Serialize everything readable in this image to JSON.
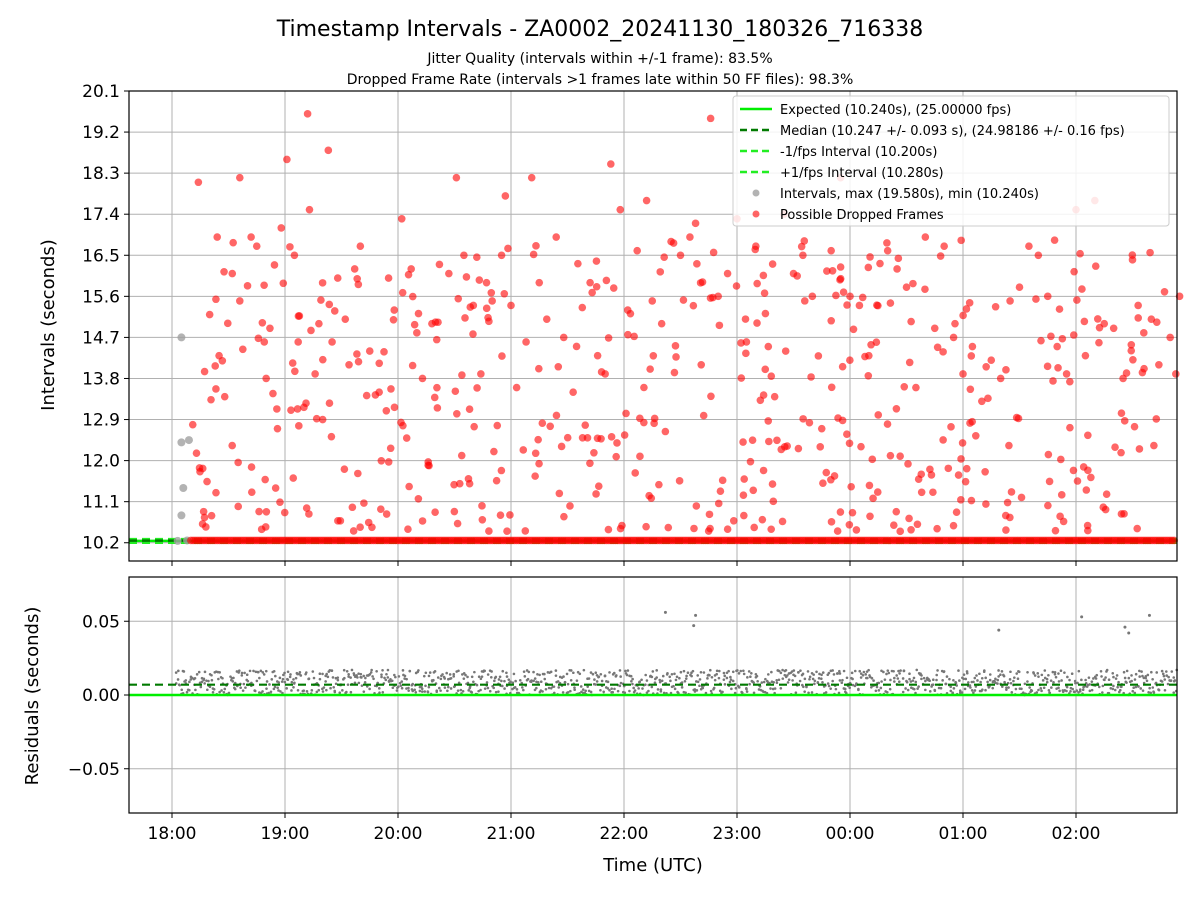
{
  "title": "Timestamp Intervals - ZA0002_20241130_180326_716338",
  "subtitle1": "Jitter Quality (intervals within +/-1 frame): 83.5%",
  "subtitle2": "Dropped Frame Rate (intervals >1 frames late within 50 FF files): 98.3%",
  "colors": {
    "expected": "#00ee00",
    "median": "#007a00",
    "interval_lines": "#22ee22",
    "intervals": "#a0a0a0",
    "dropped": "#ff0000",
    "residuals": "#777777",
    "grid": "#b0b0b0"
  },
  "chart_data": [
    {
      "type": "scatter",
      "xlabel": "Time (UTC)",
      "ylabel": "Intervals (seconds)",
      "ylim": [
        9.8,
        20.1
      ],
      "y_ticks": [
        "10.2",
        "11.1",
        "12.0",
        "12.9",
        "13.8",
        "14.7",
        "15.6",
        "16.5",
        "17.4",
        "18.3",
        "19.2",
        "20.1"
      ],
      "x_tick_labels": [
        "18:00",
        "19:00",
        "20:00",
        "21:00",
        "22:00",
        "23:00",
        "00:00",
        "01:00",
        "02:00"
      ],
      "grid": true,
      "legend_position": "top-right",
      "legend": [
        "Expected (10.240s), (25.00000 fps)",
        "Median (10.247 +/- 0.093 s), (24.98186 +/- 0.16 fps)",
        "-1/fps Interval (10.200s)",
        "+1/fps Interval (10.280s)",
        "Intervals, max (19.580s), min (10.240s)",
        "Possible Dropped Frames"
      ],
      "series": [
        {
          "name": "Expected (10.240s), (25.00000 fps)",
          "kind": "hline",
          "y": 10.24
        },
        {
          "name": "Median (10.247 +/- 0.093 s), (24.98186 +/- 0.16 fps)",
          "kind": "hline",
          "y": 10.247
        },
        {
          "name": "-1/fps Interval (10.200s)",
          "kind": "hline",
          "y": 10.2
        },
        {
          "name": "+1/fps Interval (10.280s)",
          "kind": "hline",
          "y": 10.28
        },
        {
          "name": "Intervals, max (19.580s), min (10.240s)",
          "kind": "scatter",
          "points": [
            [
              "18:05",
              14.7
            ],
            [
              "18:05",
              12.4
            ],
            [
              "18:06",
              11.4
            ],
            [
              "18:05",
              10.8
            ],
            [
              "18:09",
              12.45
            ],
            [
              "18:08",
              10.25
            ],
            [
              "18:03",
              10.24
            ]
          ]
        },
        {
          "name": "Possible Dropped Frames",
          "kind": "scatter",
          "baseline_y": 10.25,
          "baseline_from": "18:10",
          "points": [
            [
              "18:14",
              18.1
            ],
            [
              "18:20",
              15.2
            ],
            [
              "18:24",
              16.9
            ],
            [
              "18:25",
              14.3
            ],
            [
              "18:28",
              13.4
            ],
            [
              "18:32",
              16.1
            ],
            [
              "18:36",
              18.2
            ],
            [
              "18:36",
              15.5
            ],
            [
              "18:42",
              16.9
            ],
            [
              "18:45",
              16.7
            ],
            [
              "18:49",
              14.6
            ],
            [
              "18:50",
              13.8
            ],
            [
              "18:52",
              14.9
            ],
            [
              "18:56",
              12.7
            ],
            [
              "18:58",
              17.1
            ],
            [
              "19:01",
              18.6
            ],
            [
              "19:05",
              16.5
            ],
            [
              "19:07",
              14.6
            ],
            [
              "19:12",
              19.6
            ],
            [
              "19:13",
              17.5
            ],
            [
              "19:16",
              13.9
            ],
            [
              "19:18",
              15.0
            ],
            [
              "19:20",
              12.9
            ],
            [
              "19:23",
              18.8
            ],
            [
              "19:25",
              14.6
            ],
            [
              "19:28",
              16.0
            ],
            [
              "19:32",
              15.1
            ],
            [
              "19:34",
              14.1
            ],
            [
              "19:37",
              16.2
            ],
            [
              "19:40",
              16.7
            ],
            [
              "19:45",
              14.4
            ],
            [
              "19:50",
              13.5
            ],
            [
              "19:55",
              16.0
            ],
            [
              "19:58",
              15.3
            ],
            [
              "20:02",
              17.3
            ],
            [
              "20:07",
              16.2
            ],
            [
              "20:10",
              14.8
            ],
            [
              "20:13",
              13.8
            ],
            [
              "20:16",
              11.9
            ],
            [
              "20:18",
              15.0
            ],
            [
              "20:22",
              16.3
            ],
            [
              "20:27",
              16.1
            ],
            [
              "20:31",
              18.2
            ],
            [
              "20:35",
              16.5
            ],
            [
              "20:40",
              15.4
            ],
            [
              "20:44",
              13.9
            ],
            [
              "20:47",
              15.9
            ],
            [
              "20:50",
              15.5
            ],
            [
              "20:55",
              16.5
            ],
            [
              "20:57",
              17.8
            ],
            [
              "21:00",
              15.4
            ],
            [
              "21:03",
              13.6
            ],
            [
              "21:08",
              14.6
            ],
            [
              "21:11",
              18.2
            ],
            [
              "21:15",
              15.9
            ],
            [
              "21:19",
              15.1
            ],
            [
              "21:24",
              16.9
            ],
            [
              "21:28",
              14.7
            ],
            [
              "21:33",
              13.5
            ],
            [
              "21:38",
              12.5
            ],
            [
              "21:42",
              15.9
            ],
            [
              "21:46",
              14.3
            ],
            [
              "21:50",
              13.9
            ],
            [
              "21:53",
              18.5
            ],
            [
              "21:58",
              17.5
            ],
            [
              "22:02",
              15.3
            ],
            [
              "22:07",
              16.6
            ],
            [
              "22:12",
              17.7
            ],
            [
              "22:15",
              15.5
            ],
            [
              "22:20",
              15.0
            ],
            [
              "22:25",
              16.8
            ],
            [
              "22:30",
              16.5
            ],
            [
              "22:35",
              16.9
            ],
            [
              "22:38",
              17.2
            ],
            [
              "22:41",
              14.1
            ],
            [
              "22:46",
              19.5
            ],
            [
              "22:50",
              15.6
            ],
            [
              "22:55",
              16.1
            ],
            [
              "23:00",
              17.3
            ],
            [
              "23:05",
              14.6
            ],
            [
              "23:10",
              16.7
            ],
            [
              "23:15",
              14.0
            ],
            [
              "23:20",
              13.4
            ],
            [
              "23:25",
              17.4
            ],
            [
              "23:30",
              16.1
            ],
            [
              "23:35",
              16.5
            ],
            [
              "23:40",
              15.6
            ],
            [
              "23:45",
              12.7
            ],
            [
              "23:50",
              16.6
            ],
            [
              "23:55",
              18.2
            ],
            [
              "00:00",
              15.6
            ],
            [
              "00:05",
              15.4
            ],
            [
              "00:10",
              14.3
            ],
            [
              "00:15",
              13.0
            ],
            [
              "00:20",
              16.6
            ],
            [
              "00:25",
              16.2
            ],
            [
              "00:30",
              15.8
            ],
            [
              "00:35",
              13.6
            ],
            [
              "00:40",
              16.9
            ],
            [
              "00:45",
              14.9
            ],
            [
              "00:50",
              16.7
            ],
            [
              "00:55",
              14.7
            ],
            [
              "01:00",
              13.9
            ],
            [
              "01:05",
              14.5
            ],
            [
              "01:10",
              13.3
            ],
            [
              "01:15",
              14.2
            ],
            [
              "01:20",
              13.8
            ],
            [
              "01:25",
              15.5
            ],
            [
              "01:30",
              15.8
            ],
            [
              "01:35",
              16.7
            ],
            [
              "01:40",
              16.5
            ],
            [
              "01:45",
              15.6
            ],
            [
              "01:50",
              14.5
            ],
            [
              "01:55",
              13.9
            ],
            [
              "02:00",
              17.5
            ],
            [
              "02:05",
              14.3
            ],
            [
              "02:10",
              17.7
            ],
            [
              "02:15",
              15.0
            ],
            [
              "02:20",
              14.9
            ],
            [
              "02:25",
              13.8
            ],
            [
              "02:30",
              16.4
            ],
            [
              "02:33",
              15.4
            ],
            [
              "02:36",
              14.8
            ],
            [
              "02:40",
              15.1
            ],
            [
              "02:44",
              14.1
            ],
            [
              "02:47",
              15.7
            ],
            [
              "02:50",
              14.7
            ],
            [
              "02:53",
              13.9
            ],
            [
              "02:55",
              15.6
            ]
          ]
        }
      ]
    },
    {
      "type": "scatter",
      "xlabel": "Time (UTC)",
      "ylabel": "Residuals (seconds)",
      "ylim": [
        -0.08,
        0.08
      ],
      "y_ticks": [
        "0.05",
        "0.00",
        "−0.05"
      ],
      "x_tick_labels": [
        "18:00",
        "19:00",
        "20:00",
        "21:00",
        "22:00",
        "23:00",
        "00:00",
        "01:00",
        "02:00"
      ],
      "grid": true,
      "series": [
        {
          "name": "Expected",
          "kind": "hline",
          "y": 0.0
        },
        {
          "name": "Median",
          "kind": "hline",
          "y": 0.007
        },
        {
          "name": "Residuals",
          "kind": "scatter",
          "band": [
            0.0,
            0.017
          ],
          "band_from": "18:02",
          "outliers": [
            [
              "22:22",
              0.056
            ],
            [
              "22:37",
              0.047
            ],
            [
              "22:38",
              0.054
            ],
            [
              "01:19",
              0.044
            ],
            [
              "02:03",
              0.053
            ],
            [
              "02:26",
              0.046
            ],
            [
              "02:28",
              0.042
            ],
            [
              "02:39",
              0.054
            ]
          ]
        }
      ]
    }
  ]
}
